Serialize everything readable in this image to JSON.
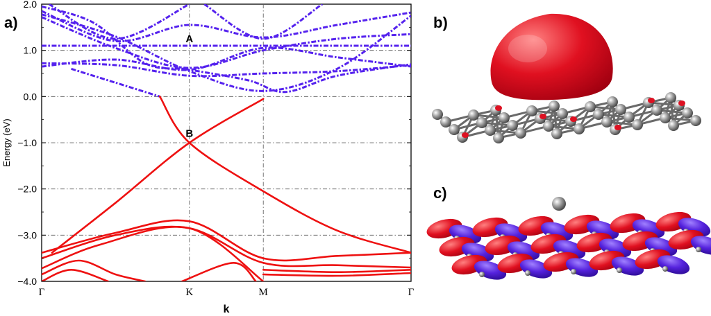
{
  "chart_data": {
    "type": "line",
    "panel_label": "a)",
    "ylabel": "Energy (eV)",
    "xlabel": "k",
    "ylim": [
      -4.0,
      2.0
    ],
    "yticks": [
      2.0,
      1.0,
      0.0,
      -1.0,
      -2.0,
      -3.0,
      -4.0
    ],
    "ytick_labels": [
      "2.0",
      "1.0",
      "0.0",
      "−1.0",
      "−2.0",
      "−3.0",
      "−4.0"
    ],
    "kpoint_labels": [
      "Γ",
      "K",
      "M",
      "Γ"
    ],
    "kpoint_positions": [
      0,
      1.0,
      1.5,
      2.5
    ],
    "grid": true,
    "colors": {
      "occupied": "#ee1111",
      "unoccupied": "#5522ee"
    },
    "annotations": [
      {
        "text": "A",
        "x": 1.0,
        "y": 1.25
      },
      {
        "text": "B",
        "x": 1.0,
        "y": -0.8
      }
    ],
    "series": [
      {
        "style": "dashdot",
        "points": [
          [
            0,
            0.72
          ],
          [
            0.5,
            0.68
          ],
          [
            1.0,
            0.45
          ],
          [
            1.5,
            0.5
          ],
          [
            2.0,
            0.55
          ],
          [
            2.5,
            0.68
          ]
        ]
      },
      {
        "style": "dashdot",
        "points": [
          [
            0,
            0.65
          ],
          [
            0.5,
            0.8
          ],
          [
            1.0,
            0.58
          ],
          [
            1.5,
            1.05
          ],
          [
            2.0,
            0.85
          ],
          [
            2.5,
            0.65
          ]
        ]
      },
      {
        "style": "dashdot",
        "points": [
          [
            0,
            1.1
          ],
          [
            0.5,
            1.1
          ],
          [
            1.0,
            1.1
          ],
          [
            1.5,
            1.1
          ],
          [
            2.0,
            1.1
          ],
          [
            2.5,
            1.1
          ]
        ]
      },
      {
        "style": "dashdot",
        "points": [
          [
            0,
            1.78
          ],
          [
            0.5,
            1.3
          ],
          [
            1.0,
            0.55
          ],
          [
            1.5,
            0.12
          ],
          [
            2.0,
            0.6
          ],
          [
            2.5,
            1.75
          ]
        ]
      },
      {
        "style": "dashdot",
        "points": [
          [
            0,
            1.72
          ],
          [
            0.5,
            1.05
          ],
          [
            1.0,
            0.62
          ],
          [
            1.5,
            1.0
          ],
          [
            2.0,
            1.25
          ],
          [
            2.5,
            1.35
          ]
        ]
      },
      {
        "style": "dashdot",
        "points": [
          [
            0,
            1.85
          ],
          [
            0.5,
            1.2
          ],
          [
            1.0,
            1.55
          ],
          [
            1.5,
            1.28
          ],
          [
            2.0,
            1.55
          ],
          [
            2.5,
            1.82
          ]
        ]
      },
      {
        "style": "dashdot",
        "points": [
          [
            0,
            1.95
          ],
          [
            0.35,
            1.6
          ],
          [
            0.7,
            0.72
          ],
          [
            1.0,
            0.58
          ],
          [
            1.4,
            0.35
          ],
          [
            1.65,
            0.1
          ],
          [
            2.0,
            0.45
          ],
          [
            2.5,
            0.7
          ]
        ]
      },
      {
        "style": "dashdot",
        "points": [
          [
            0.05,
            2.0
          ],
          [
            0.5,
            1.25
          ],
          [
            1.0,
            2.0
          ]
        ]
      },
      {
        "style": "dashdot",
        "points": [
          [
            1.1,
            2.0
          ],
          [
            1.5,
            1.25
          ],
          [
            1.9,
            2.0
          ]
        ]
      },
      {
        "style": "dashdot",
        "points": [
          [
            0.2,
            0.6
          ],
          [
            0.5,
            0.3
          ],
          [
            0.8,
            0.0
          ]
        ]
      },
      {
        "style": "solid",
        "points": [
          [
            0.8,
            0.0
          ],
          [
            1.0,
            -1.0
          ],
          [
            1.5,
            -2.05
          ],
          [
            2.0,
            -2.9
          ],
          [
            2.5,
            -3.38
          ]
        ]
      },
      {
        "style": "solid",
        "points": [
          [
            1.5,
            -0.05
          ],
          [
            1.0,
            -1.0
          ],
          [
            0.5,
            -2.3
          ],
          [
            0.07,
            -3.38
          ]
        ]
      },
      {
        "style": "solid",
        "points": [
          [
            0,
            -3.38
          ],
          [
            0.5,
            -2.95
          ],
          [
            1.0,
            -2.7
          ],
          [
            1.5,
            -3.5
          ],
          [
            2.0,
            -3.45
          ],
          [
            2.5,
            -3.38
          ]
        ]
      },
      {
        "style": "solid",
        "points": [
          [
            0,
            -3.5
          ],
          [
            0.5,
            -3.0
          ],
          [
            1.0,
            -2.85
          ],
          [
            1.5,
            -3.6
          ],
          [
            2.0,
            -3.65
          ],
          [
            2.5,
            -3.7
          ]
        ]
      },
      {
        "style": "solid",
        "points": [
          [
            0,
            -3.72
          ],
          [
            0.4,
            -3.2
          ],
          [
            1.0,
            -2.85
          ],
          [
            1.5,
            -4.0
          ]
        ]
      },
      {
        "style": "solid",
        "points": [
          [
            0,
            -3.85
          ],
          [
            0.25,
            -3.55
          ],
          [
            0.5,
            -3.85
          ],
          [
            0.7,
            -4.0
          ]
        ]
      },
      {
        "style": "solid",
        "points": [
          [
            0,
            -4.0
          ],
          [
            0.2,
            -3.75
          ],
          [
            0.45,
            -4.0
          ]
        ]
      },
      {
        "style": "solid",
        "points": [
          [
            1.5,
            -3.75
          ],
          [
            2.0,
            -3.8
          ],
          [
            2.5,
            -3.75
          ]
        ]
      },
      {
        "style": "solid",
        "points": [
          [
            1.5,
            -3.85
          ],
          [
            2.0,
            -3.88
          ],
          [
            2.5,
            -3.82
          ]
        ]
      },
      {
        "style": "solid",
        "points": [
          [
            0.95,
            -4.0
          ],
          [
            1.3,
            -3.6
          ],
          [
            1.45,
            -4.0
          ]
        ]
      }
    ]
  },
  "panels": {
    "b_label": "b)",
    "c_label": "c)"
  }
}
